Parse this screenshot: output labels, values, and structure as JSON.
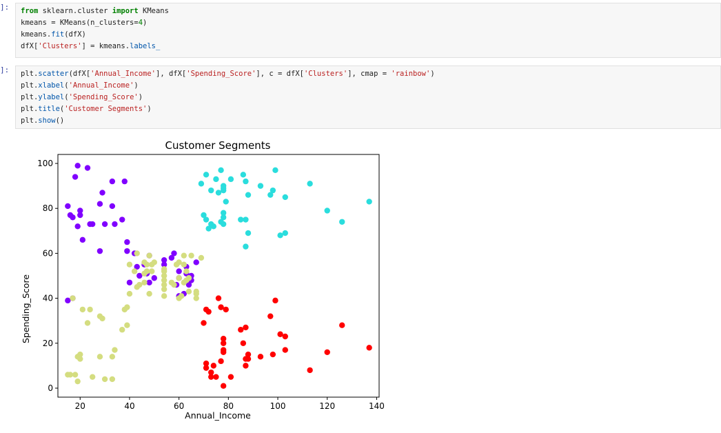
{
  "cells": [
    {
      "prompt": "]: ",
      "lines": [
        [
          {
            "t": "from",
            "c": "k"
          },
          {
            "t": " sklearn.cluster "
          },
          {
            "t": "import",
            "c": "k"
          },
          {
            "t": " KMeans"
          }
        ],
        [
          {
            "t": "kmeans = KMeans(n_clusters="
          },
          {
            "t": "4",
            "c": "num"
          },
          {
            "t": ")"
          }
        ],
        [
          {
            "t": "kmeans."
          },
          {
            "t": "fit",
            "c": "f"
          },
          {
            "t": "(dfX)"
          }
        ],
        [
          {
            "t": "dfX["
          },
          {
            "t": "'Clusters'",
            "c": "s"
          },
          {
            "t": "] = kmeans."
          },
          {
            "t": "labels_",
            "c": "f"
          }
        ]
      ]
    },
    {
      "prompt": "]: ",
      "lines": [
        [
          {
            "t": "plt.",
            "c": ""
          },
          {
            "t": "scatter",
            "c": "f"
          },
          {
            "t": "(dfX["
          },
          {
            "t": "'Annual_Income'",
            "c": "s"
          },
          {
            "t": "], dfX["
          },
          {
            "t": "'Spending_Score'",
            "c": "s"
          },
          {
            "t": "], c = dfX["
          },
          {
            "t": "'Clusters'",
            "c": "s"
          },
          {
            "t": "], cmap = "
          },
          {
            "t": "'rainbow'",
            "c": "s"
          },
          {
            "t": ")"
          }
        ],
        [
          {
            "t": "plt."
          },
          {
            "t": "xlabel",
            "c": "f"
          },
          {
            "t": "("
          },
          {
            "t": "'Annual_Income'",
            "c": "s"
          },
          {
            "t": ")"
          }
        ],
        [
          {
            "t": "plt."
          },
          {
            "t": "ylabel",
            "c": "f"
          },
          {
            "t": "("
          },
          {
            "t": "'Spending_Score'",
            "c": "s"
          },
          {
            "t": ")"
          }
        ],
        [
          {
            "t": "plt."
          },
          {
            "t": "title",
            "c": "f"
          },
          {
            "t": "("
          },
          {
            "t": "'Customer Segments'",
            "c": "s"
          },
          {
            "t": ")"
          }
        ],
        [
          {
            "t": "plt."
          },
          {
            "t": "show",
            "c": "f"
          },
          {
            "t": "()"
          }
        ]
      ]
    }
  ],
  "chart_data": {
    "type": "scatter",
    "title": "Customer Segments",
    "xlabel": "Annual_Income",
    "ylabel": "Spending_Score",
    "xlim": [
      11,
      141
    ],
    "ylim": [
      -4,
      104
    ],
    "xticks": [
      20,
      40,
      60,
      80,
      100,
      120,
      140
    ],
    "yticks": [
      0,
      20,
      40,
      60,
      80,
      100
    ],
    "grid": false,
    "legend": "none",
    "series": [
      {
        "color": "#8000ff",
        "points": [
          [
            15,
            39
          ],
          [
            15,
            81
          ],
          [
            16,
            77
          ],
          [
            17,
            76
          ],
          [
            17,
            40
          ],
          [
            18,
            94
          ],
          [
            19,
            72
          ],
          [
            19,
            99
          ],
          [
            20,
            77
          ],
          [
            20,
            79
          ],
          [
            21,
            66
          ],
          [
            23,
            98
          ],
          [
            24,
            73
          ],
          [
            25,
            73
          ],
          [
            28,
            82
          ],
          [
            28,
            61
          ],
          [
            29,
            87
          ],
          [
            30,
            73
          ],
          [
            33,
            81
          ],
          [
            33,
            92
          ],
          [
            34,
            73
          ],
          [
            37,
            75
          ],
          [
            38,
            92
          ],
          [
            39,
            65
          ],
          [
            39,
            61
          ],
          [
            40,
            47
          ],
          [
            42,
            60
          ],
          [
            43,
            54
          ],
          [
            44,
            50
          ],
          [
            46,
            55
          ],
          [
            47,
            51
          ],
          [
            48,
            59
          ],
          [
            48,
            47
          ],
          [
            50,
            49
          ],
          [
            54,
            55
          ],
          [
            54,
            57
          ],
          [
            57,
            58
          ],
          [
            58,
            60
          ],
          [
            59,
            46
          ],
          [
            60,
            52
          ],
          [
            60,
            49
          ],
          [
            60,
            41
          ],
          [
            62,
            42
          ],
          [
            63,
            54
          ],
          [
            63,
            51
          ],
          [
            64,
            46
          ],
          [
            65,
            50
          ],
          [
            65,
            48
          ],
          [
            67,
            56
          ]
        ]
      },
      {
        "color": "#2adddd",
        "points": [
          [
            69,
            91
          ],
          [
            70,
            77
          ],
          [
            71,
            95
          ],
          [
            71,
            75
          ],
          [
            72,
            71
          ],
          [
            73,
            88
          ],
          [
            73,
            73
          ],
          [
            74,
            72
          ],
          [
            75,
            93
          ],
          [
            76,
            87
          ],
          [
            77,
            97
          ],
          [
            77,
            74
          ],
          [
            78,
            90
          ],
          [
            78,
            88
          ],
          [
            78,
            76
          ],
          [
            78,
            78
          ],
          [
            78,
            73
          ],
          [
            78,
            89
          ],
          [
            79,
            83
          ],
          [
            81,
            93
          ],
          [
            85,
            75
          ],
          [
            86,
            95
          ],
          [
            87,
            75
          ],
          [
            87,
            92
          ],
          [
            87,
            63
          ],
          [
            88,
            86
          ],
          [
            88,
            69
          ],
          [
            93,
            90
          ],
          [
            97,
            86
          ],
          [
            98,
            88
          ],
          [
            99,
            97
          ],
          [
            101,
            68
          ],
          [
            103,
            85
          ],
          [
            103,
            69
          ],
          [
            113,
            91
          ],
          [
            120,
            79
          ],
          [
            126,
            74
          ],
          [
            137,
            83
          ]
        ]
      },
      {
        "color": "#d4dd80",
        "points": [
          [
            15,
            6
          ],
          [
            16,
            6
          ],
          [
            17,
            40
          ],
          [
            18,
            6
          ],
          [
            19,
            3
          ],
          [
            19,
            14
          ],
          [
            20,
            15
          ],
          [
            20,
            13
          ],
          [
            21,
            35
          ],
          [
            23,
            29
          ],
          [
            24,
            35
          ],
          [
            25,
            5
          ],
          [
            28,
            14
          ],
          [
            28,
            32
          ],
          [
            29,
            31
          ],
          [
            30,
            4
          ],
          [
            33,
            4
          ],
          [
            33,
            14
          ],
          [
            34,
            17
          ],
          [
            37,
            26
          ],
          [
            38,
            35
          ],
          [
            39,
            36
          ],
          [
            39,
            28
          ],
          [
            40,
            42
          ],
          [
            40,
            55
          ],
          [
            42,
            52
          ],
          [
            43,
            60
          ],
          [
            43,
            45
          ],
          [
            44,
            46
          ],
          [
            46,
            51
          ],
          [
            46,
            47
          ],
          [
            46,
            56
          ],
          [
            47,
            55
          ],
          [
            47,
            52
          ],
          [
            48,
            42
          ],
          [
            48,
            59
          ],
          [
            49,
            55
          ],
          [
            49,
            52
          ],
          [
            50,
            56
          ],
          [
            54,
            41
          ],
          [
            54,
            44
          ],
          [
            54,
            46
          ],
          [
            54,
            48
          ],
          [
            54,
            50
          ],
          [
            54,
            52
          ],
          [
            54,
            53
          ],
          [
            57,
            47
          ],
          [
            58,
            46
          ],
          [
            59,
            55
          ],
          [
            60,
            56
          ],
          [
            60,
            49
          ],
          [
            60,
            40
          ],
          [
            61,
            41
          ],
          [
            62,
            55
          ],
          [
            62,
            59
          ],
          [
            62,
            47
          ],
          [
            63,
            52
          ],
          [
            63,
            48
          ],
          [
            64,
            43
          ],
          [
            64,
            49
          ],
          [
            65,
            59
          ],
          [
            67,
            42
          ],
          [
            67,
            43
          ],
          [
            67,
            40
          ],
          [
            69,
            58
          ]
        ]
      },
      {
        "color": "#ff0000",
        "points": [
          [
            70,
            29
          ],
          [
            71,
            35
          ],
          [
            71,
            11
          ],
          [
            71,
            9
          ],
          [
            72,
            34
          ],
          [
            73,
            5
          ],
          [
            73,
            7
          ],
          [
            74,
            10
          ],
          [
            75,
            5
          ],
          [
            76,
            40
          ],
          [
            77,
            12
          ],
          [
            77,
            36
          ],
          [
            78,
            1
          ],
          [
            78,
            22
          ],
          [
            78,
            17
          ],
          [
            78,
            20
          ],
          [
            78,
            16
          ],
          [
            79,
            35
          ],
          [
            81,
            5
          ],
          [
            85,
            26
          ],
          [
            86,
            20
          ],
          [
            87,
            27
          ],
          [
            87,
            13
          ],
          [
            87,
            10
          ],
          [
            88,
            13
          ],
          [
            88,
            15
          ],
          [
            93,
            14
          ],
          [
            97,
            32
          ],
          [
            98,
            15
          ],
          [
            99,
            39
          ],
          [
            101,
            24
          ],
          [
            103,
            23
          ],
          [
            103,
            17
          ],
          [
            113,
            8
          ],
          [
            120,
            16
          ],
          [
            126,
            28
          ],
          [
            137,
            18
          ]
        ]
      }
    ]
  }
}
